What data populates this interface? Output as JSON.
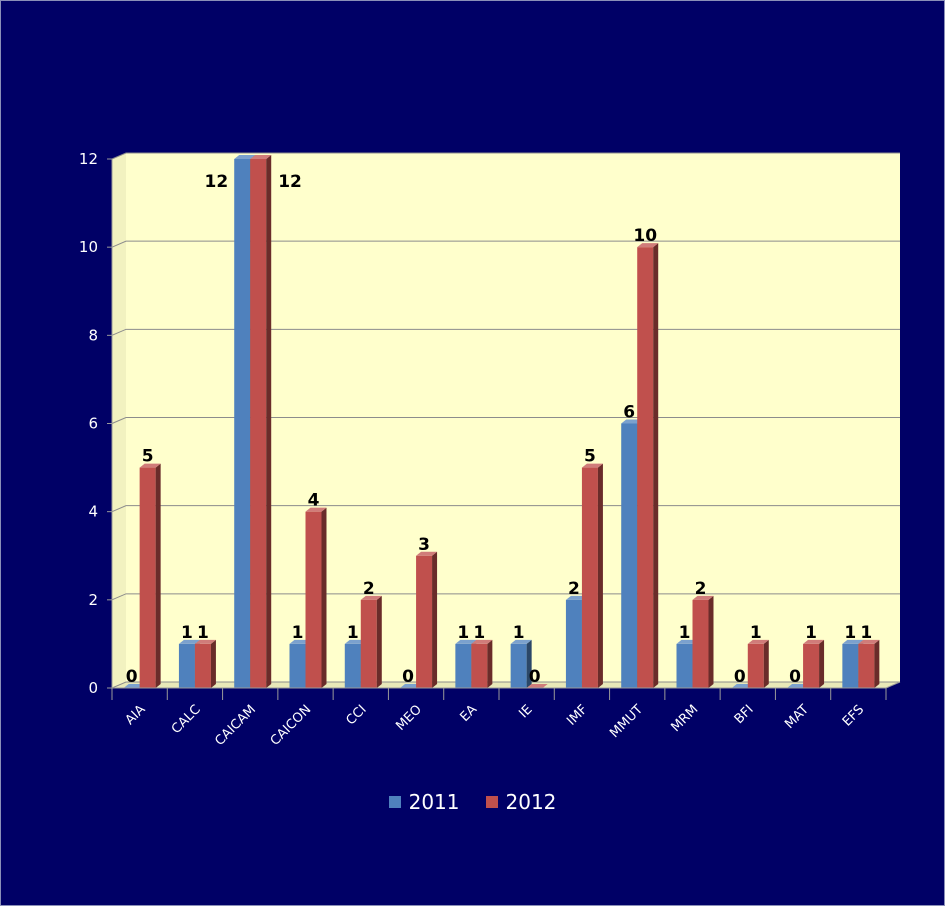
{
  "chart_data": {
    "type": "bar",
    "categories": [
      "AIA",
      "CALC",
      "CAICAM",
      "CAICON",
      "CCI",
      "MEO",
      "EA",
      "IE",
      "IMF",
      "MMUT",
      "MRM",
      "BFI",
      "MAT",
      "EFS"
    ],
    "series": [
      {
        "name": "2011",
        "values": [
          0,
          1,
          12,
          1,
          1,
          0,
          1,
          1,
          2,
          6,
          1,
          0,
          0,
          1
        ]
      },
      {
        "name": "2012",
        "values": [
          5,
          1,
          12,
          4,
          2,
          3,
          1,
          0,
          5,
          10,
          2,
          1,
          1,
          1
        ]
      }
    ],
    "ylim": [
      0,
      12
    ],
    "yticks": [
      0,
      2,
      4,
      6,
      8,
      10,
      12
    ],
    "grid": true,
    "legend_position": "bottom",
    "colors": {
      "background": "#000066",
      "plot_area": "#FFFFCC",
      "series": [
        "#4F81BD",
        "#C0504D"
      ]
    }
  }
}
